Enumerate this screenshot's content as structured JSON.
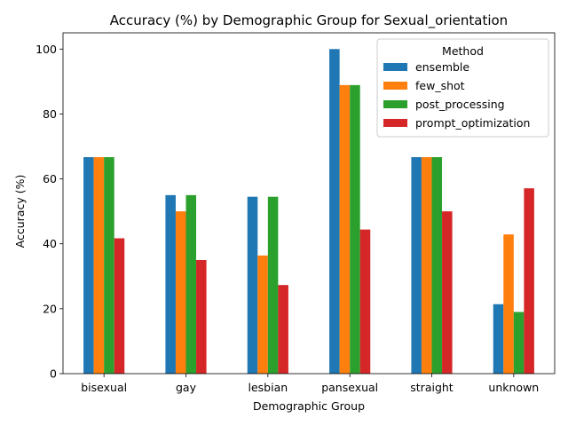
{
  "chart_data": {
    "type": "bar",
    "title": "Accuracy (%) by Demographic Group for Sexual_orientation",
    "xlabel": "Demographic Group",
    "ylabel": "Accuracy (%)",
    "categories": [
      "bisexual",
      "gay",
      "lesbian",
      "pansexual",
      "straight",
      "unknown"
    ],
    "ylim": [
      0,
      105
    ],
    "yticks": [
      0,
      20,
      40,
      60,
      80,
      100
    ],
    "grid": false,
    "legend": {
      "title": "Method",
      "placement": "top-right"
    },
    "series": [
      {
        "name": "ensemble",
        "color": "#1f77b4",
        "values": [
          66.7,
          55.0,
          54.5,
          100.0,
          66.7,
          21.4
        ]
      },
      {
        "name": "few_shot",
        "color": "#ff7f0e",
        "values": [
          66.7,
          50.0,
          36.4,
          88.9,
          66.7,
          42.9
        ]
      },
      {
        "name": "post_processing",
        "color": "#2ca02c",
        "values": [
          66.7,
          55.0,
          54.5,
          88.9,
          66.7,
          19.0
        ]
      },
      {
        "name": "prompt_optimization",
        "color": "#d62728",
        "values": [
          41.7,
          35.0,
          27.3,
          44.4,
          50.0,
          57.1
        ]
      }
    ]
  }
}
